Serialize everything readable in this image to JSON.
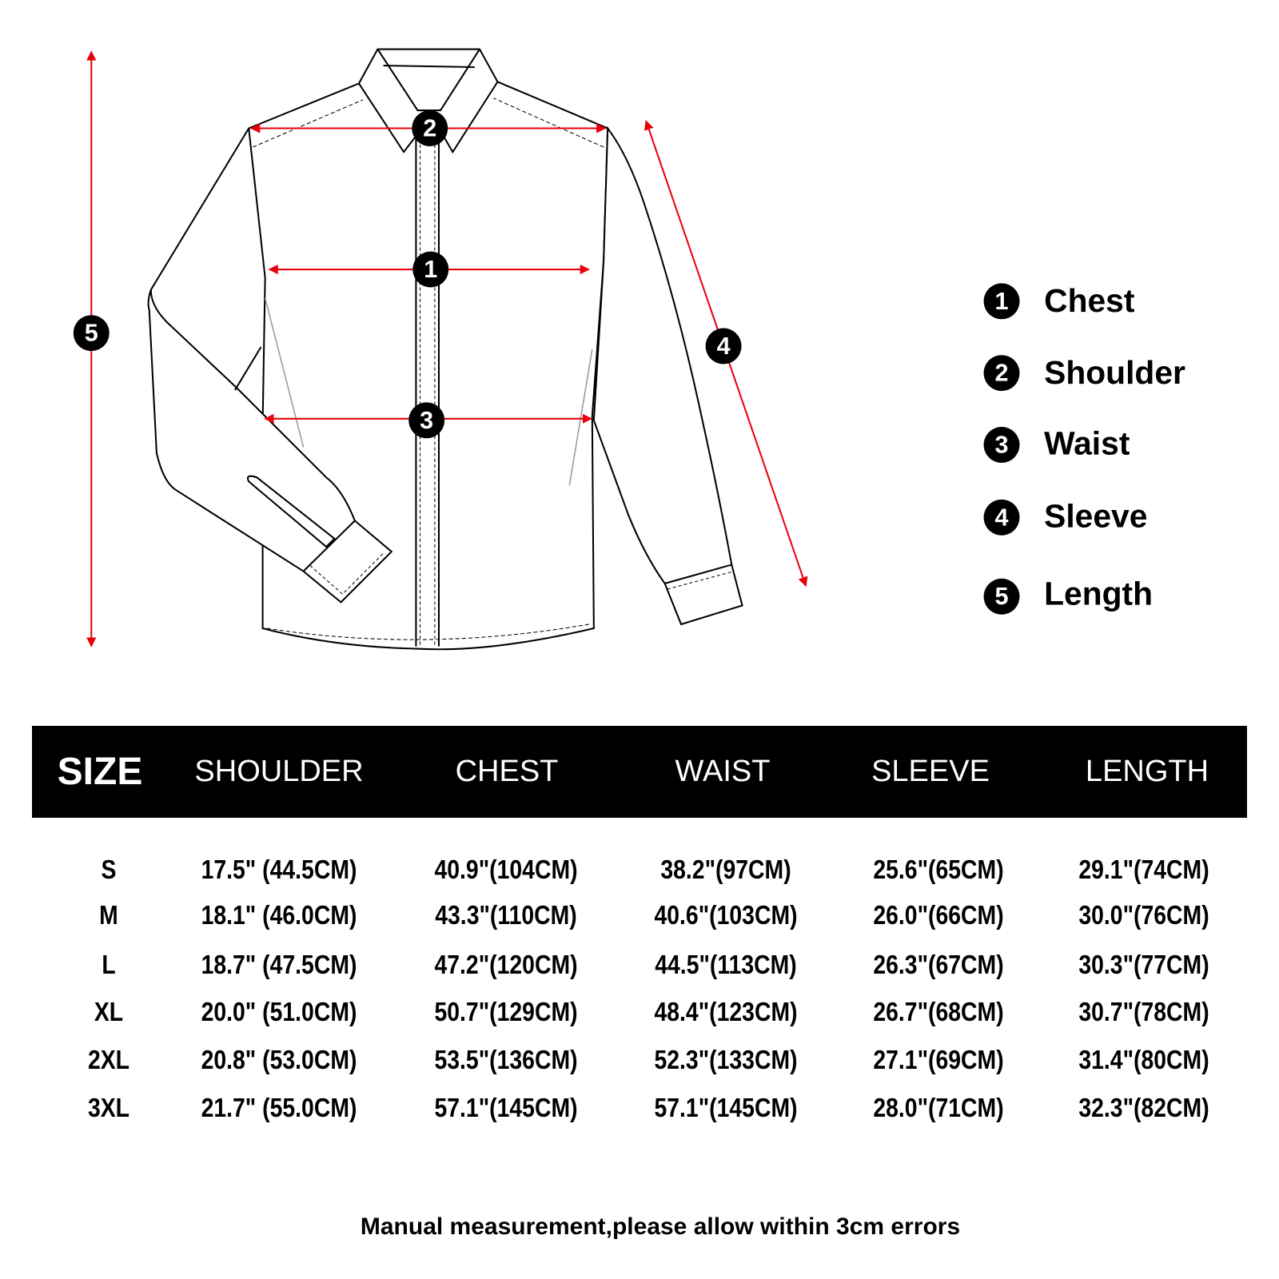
{
  "legend": [
    {
      "num": "1",
      "label": "Chest"
    },
    {
      "num": "2",
      "label": "Shoulder"
    },
    {
      "num": "3",
      "label": "Waist"
    },
    {
      "num": "4",
      "label": "Sleeve"
    },
    {
      "num": "5",
      "label": "Length"
    }
  ],
  "colors": {
    "arrow": "#e8000b",
    "header_bg": "#000000",
    "header_text": "#ffffff"
  },
  "table": {
    "headers": [
      "SIZE",
      "SHOULDER",
      "CHEST",
      "WAIST",
      "SLEEVE",
      "LENGTH"
    ],
    "rows": [
      [
        "S",
        "17.5\" (44.5CM)",
        "40.9\"(104CM)",
        "38.2\"(97CM)",
        "25.6\"(65CM)",
        "29.1\"(74CM)"
      ],
      [
        "M",
        "18.1\" (46.0CM)",
        "43.3\"(110CM)",
        "40.6\"(103CM)",
        "26.0\"(66CM)",
        "30.0\"(76CM)"
      ],
      [
        "L",
        "18.7\" (47.5CM)",
        "47.2\"(120CM)",
        "44.5\"(113CM)",
        "26.3\"(67CM)",
        "30.3\"(77CM)"
      ],
      [
        "XL",
        "20.0\" (51.0CM)",
        "50.7\"(129CM)",
        "48.4\"(123CM)",
        "26.7\"(68CM)",
        "30.7\"(78CM)"
      ],
      [
        "2XL",
        "20.8\" (53.0CM)",
        "53.5\"(136CM)",
        "52.3\"(133CM)",
        "27.1\"(69CM)",
        "31.4\"(80CM)"
      ],
      [
        "3XL",
        "21.7\" (55.0CM)",
        "57.1\"(145CM)",
        "57.1\"(145CM)",
        "28.0\"(71CM)",
        "32.3\"(82CM)"
      ]
    ]
  },
  "footer": "Manual measurement,please allow within 3cm errors"
}
